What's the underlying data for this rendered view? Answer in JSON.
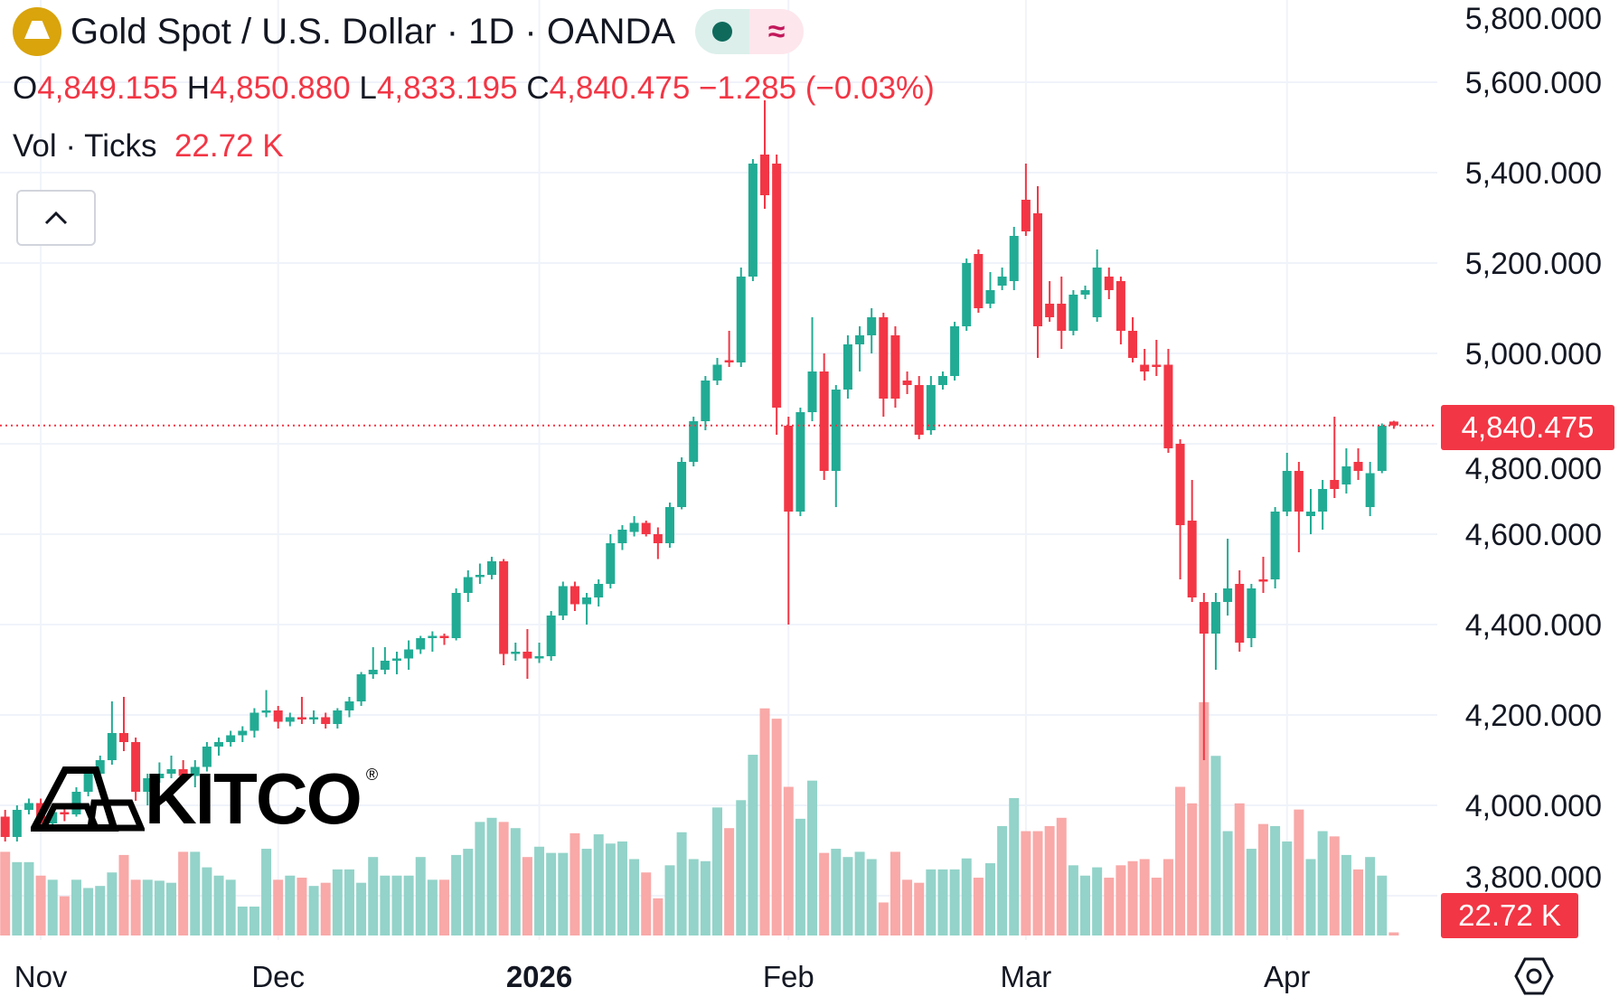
{
  "header": {
    "title": "Gold Spot / U.S. Dollar · 1D · OANDA",
    "symbol_icon": "gold-bars-icon",
    "market_status_icon": "market-open-dot-icon",
    "data_type_icon": "approx-icon",
    "data_type_glyph": "≈",
    "ohlc": {
      "o_label": "O",
      "o": "4,849.155",
      "h_label": "H",
      "h": "4,850.880",
      "l_label": "L",
      "l": "4,833.195",
      "c_label": "C",
      "c": "4,840.475",
      "change": "−1.285 (−0.03%)"
    },
    "volume": {
      "label": "Vol · Ticks",
      "value": "22.72 K"
    },
    "collapse_glyph": "⌃"
  },
  "watermark": {
    "text": "KITCO",
    "registered": "®"
  },
  "price_axis": {
    "current_price_label": "4,840.475",
    "current_volume_label": "22.72 K",
    "settings_icon": "gear-icon"
  },
  "colors": {
    "up": "#22ab94",
    "down": "#f23645",
    "up_volume": "#93d3c9",
    "down_volume": "#f8a9a8",
    "grid": "#f0f3fa"
  },
  "chart_data": {
    "type": "candlestick",
    "title": "Gold Spot / U.S. Dollar · 1D · OANDA",
    "ylim": [
      3800,
      5800
    ],
    "y_ticks": [
      5800,
      5600,
      5400,
      5200,
      5000,
      4800,
      4600,
      4400,
      4200,
      4000,
      3800
    ],
    "y_tick_labels": [
      "5,800.000",
      "5,600.000",
      "5,400.000",
      "5,200.000",
      "5,000.000",
      "4,800.000",
      "4,600.000",
      "4,400.000",
      "4,200.000",
      "4,000.000",
      "3,800.000"
    ],
    "x_ticks": [
      {
        "label": "Nov",
        "index": 3,
        "bold": false
      },
      {
        "label": "Dec",
        "index": 23,
        "bold": false
      },
      {
        "label": "2026",
        "index": 45,
        "bold": true
      },
      {
        "label": "Feb",
        "index": 66,
        "bold": false
      },
      {
        "label": "Mar",
        "index": 86,
        "bold": false
      },
      {
        "label": "Apr",
        "index": 108,
        "bold": false
      }
    ],
    "grid": true,
    "last_price": 4840.475,
    "ohlc": [
      [
        3975,
        3990,
        3920,
        3930
      ],
      [
        3930,
        4000,
        3920,
        3990
      ],
      [
        3990,
        4015,
        3980,
        4005
      ],
      [
        4005,
        4015,
        3950,
        3960
      ],
      [
        3960,
        3995,
        3950,
        3985
      ],
      [
        3985,
        3995,
        3965,
        3980
      ],
      [
        3980,
        4040,
        3975,
        4030
      ],
      [
        4030,
        4080,
        4020,
        4070
      ],
      [
        4070,
        4110,
        4050,
        4100
      ],
      [
        4100,
        4230,
        4090,
        4160
      ],
      [
        4160,
        4240,
        4120,
        4140
      ],
      [
        4140,
        4150,
        4010,
        4030
      ],
      [
        4030,
        4070,
        4000,
        4060
      ],
      [
        4060,
        4095,
        4050,
        4070
      ],
      [
        4070,
        4110,
        4060,
        4080
      ],
      [
        4080,
        4100,
        4050,
        4065
      ],
      [
        4065,
        4100,
        4040,
        4085
      ],
      [
        4085,
        4140,
        4075,
        4130
      ],
      [
        4130,
        4150,
        4110,
        4140
      ],
      [
        4140,
        4165,
        4130,
        4155
      ],
      [
        4155,
        4175,
        4140,
        4165
      ],
      [
        4165,
        4215,
        4150,
        4205
      ],
      [
        4205,
        4255,
        4195,
        4210
      ],
      [
        4210,
        4220,
        4170,
        4185
      ],
      [
        4185,
        4205,
        4175,
        4195
      ],
      [
        4195,
        4240,
        4180,
        4190
      ],
      [
        4190,
        4210,
        4180,
        4195
      ],
      [
        4195,
        4205,
        4170,
        4180
      ],
      [
        4180,
        4215,
        4170,
        4210
      ],
      [
        4210,
        4240,
        4195,
        4230
      ],
      [
        4230,
        4295,
        4220,
        4290
      ],
      [
        4290,
        4350,
        4280,
        4300
      ],
      [
        4300,
        4350,
        4290,
        4320
      ],
      [
        4320,
        4340,
        4290,
        4325
      ],
      [
        4325,
        4365,
        4300,
        4345
      ],
      [
        4345,
        4375,
        4335,
        4370
      ],
      [
        4370,
        4385,
        4340,
        4375
      ],
      [
        4375,
        4380,
        4355,
        4370
      ],
      [
        4370,
        4480,
        4365,
        4470
      ],
      [
        4470,
        4520,
        4450,
        4505
      ],
      [
        4505,
        4535,
        4490,
        4510
      ],
      [
        4510,
        4550,
        4500,
        4540
      ],
      [
        4540,
        4545,
        4310,
        4335
      ],
      [
        4335,
        4360,
        4320,
        4340
      ],
      [
        4340,
        4390,
        4280,
        4325
      ],
      [
        4325,
        4360,
        4315,
        4330
      ],
      [
        4330,
        4430,
        4320,
        4420
      ],
      [
        4420,
        4495,
        4410,
        4485
      ],
      [
        4485,
        4495,
        4430,
        4445
      ],
      [
        4445,
        4470,
        4400,
        4460
      ],
      [
        4460,
        4500,
        4440,
        4490
      ],
      [
        4490,
        4600,
        4480,
        4580
      ],
      [
        4580,
        4620,
        4565,
        4610
      ],
      [
        4605,
        4640,
        4595,
        4625
      ],
      [
        4625,
        4630,
        4595,
        4600
      ],
      [
        4600,
        4615,
        4545,
        4580
      ],
      [
        4580,
        4670,
        4570,
        4660
      ],
      [
        4660,
        4770,
        4655,
        4760
      ],
      [
        4760,
        4860,
        4750,
        4850
      ],
      [
        4850,
        4950,
        4830,
        4940
      ],
      [
        4940,
        4990,
        4930,
        4975
      ],
      [
        4985,
        5050,
        4970,
        4980
      ],
      [
        4980,
        5190,
        4970,
        5170
      ],
      [
        5170,
        5430,
        5160,
        5420
      ],
      [
        5440,
        5560,
        5320,
        5350
      ],
      [
        5420,
        5440,
        4820,
        4880
      ],
      [
        4840,
        4860,
        4400,
        4650
      ],
      [
        4650,
        4880,
        4640,
        4870
      ],
      [
        4870,
        5080,
        4850,
        4960
      ],
      [
        4960,
        5000,
        4720,
        4740
      ],
      [
        4740,
        4930,
        4660,
        4920
      ],
      [
        4920,
        5040,
        4900,
        5020
      ],
      [
        5020,
        5060,
        4960,
        5040
      ],
      [
        5040,
        5100,
        5000,
        5080
      ],
      [
        5080,
        5090,
        4860,
        4900
      ],
      [
        5040,
        5060,
        4880,
        4900
      ],
      [
        4940,
        4960,
        4910,
        4930
      ],
      [
        4930,
        4950,
        4810,
        4820
      ],
      [
        4830,
        4950,
        4820,
        4930
      ],
      [
        4930,
        4960,
        4920,
        4950
      ],
      [
        4950,
        5070,
        4940,
        5060
      ],
      [
        5060,
        5210,
        5050,
        5200
      ],
      [
        5220,
        5230,
        5090,
        5100
      ],
      [
        5110,
        5180,
        5100,
        5140
      ],
      [
        5150,
        5190,
        5140,
        5170
      ],
      [
        5160,
        5280,
        5140,
        5260
      ],
      [
        5340,
        5420,
        5260,
        5270
      ],
      [
        5310,
        5370,
        4990,
        5060
      ],
      [
        5110,
        5160,
        5070,
        5080
      ],
      [
        5110,
        5170,
        5010,
        5050
      ],
      [
        5050,
        5140,
        5040,
        5130
      ],
      [
        5130,
        5150,
        5120,
        5140
      ],
      [
        5080,
        5230,
        5070,
        5190
      ],
      [
        5170,
        5190,
        5120,
        5140
      ],
      [
        5160,
        5170,
        5020,
        5050
      ],
      [
        5050,
        5080,
        4980,
        4990
      ],
      [
        4975,
        5010,
        4940,
        4960
      ],
      [
        4975,
        5030,
        4950,
        4970
      ],
      [
        4975,
        5010,
        4780,
        4790
      ],
      [
        4800,
        4810,
        4500,
        4620
      ],
      [
        4630,
        4720,
        4450,
        4460
      ],
      [
        4450,
        4470,
        4100,
        4380
      ],
      [
        4380,
        4470,
        4300,
        4450
      ],
      [
        4450,
        4590,
        4420,
        4480
      ],
      [
        4490,
        4520,
        4340,
        4360
      ],
      [
        4370,
        4490,
        4350,
        4480
      ],
      [
        4500,
        4550,
        4470,
        4495
      ],
      [
        4500,
        4660,
        4480,
        4650
      ],
      [
        4650,
        4780,
        4640,
        4740
      ],
      [
        4740,
        4760,
        4560,
        4650
      ],
      [
        4640,
        4700,
        4600,
        4650
      ],
      [
        4650,
        4720,
        4610,
        4700
      ],
      [
        4720,
        4860,
        4680,
        4700
      ],
      [
        4710,
        4790,
        4690,
        4750
      ],
      [
        4760,
        4790,
        4720,
        4740
      ],
      [
        4660,
        4760,
        4640,
        4735
      ],
      [
        4740,
        4845,
        4735,
        4840
      ],
      [
        4849.155,
        4850.88,
        4833.195,
        4840.475
      ]
    ],
    "volume_k": [
      608,
      533,
      533,
      435,
      405,
      285,
      405,
      345,
      360,
      458,
      585,
      405,
      405,
      398,
      383,
      608,
      608,
      495,
      435,
      405,
      210,
      210,
      630,
      405,
      435,
      420,
      360,
      383,
      480,
      480,
      383,
      570,
      435,
      435,
      435,
      570,
      405,
      405,
      585,
      630,
      825,
      855,
      825,
      780,
      570,
      645,
      600,
      600,
      743,
      630,
      735,
      668,
      683,
      555,
      458,
      270,
      510,
      750,
      555,
      540,
      930,
      780,
      983,
      1313,
      1650,
      1575,
      1080,
      848,
      1125,
      600,
      630,
      570,
      608,
      555,
      240,
      608,
      405,
      383,
      480,
      480,
      480,
      560,
      420,
      525,
      795,
      998,
      758,
      758,
      795,
      855,
      510,
      435,
      495,
      420,
      510,
      540,
      555,
      420,
      555,
      1080,
      960,
      1695,
      1305,
      758,
      960,
      630,
      810,
      795,
      683,
      915,
      555,
      758,
      720,
      585,
      480,
      570,
      435,
      22.72
    ]
  }
}
